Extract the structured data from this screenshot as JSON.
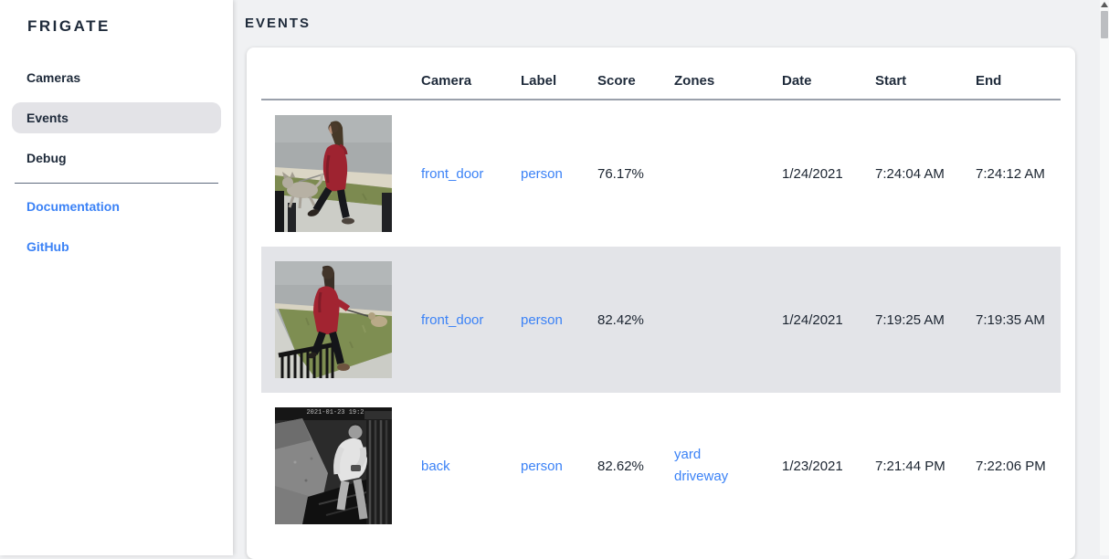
{
  "app": {
    "title": "FRIGATE"
  },
  "sidebar": {
    "items": [
      {
        "label": "Cameras",
        "active": false
      },
      {
        "label": "Events",
        "active": true
      },
      {
        "label": "Debug",
        "active": false
      }
    ],
    "links": [
      {
        "label": "Documentation"
      },
      {
        "label": "GitHub"
      }
    ]
  },
  "main": {
    "heading": "EVENTS",
    "table": {
      "columns": [
        "Camera",
        "Label",
        "Score",
        "Zones",
        "Date",
        "Start",
        "End"
      ],
      "rows": [
        {
          "camera": "front_door",
          "label": "person",
          "score": "76.17%",
          "zones": [],
          "date": "1/24/2021",
          "start": "7:24:04 AM",
          "end": "7:24:12 AM",
          "selected": false,
          "thumbnail": "person-red-coat-walking-dog-daylight"
        },
        {
          "camera": "front_door",
          "label": "person",
          "score": "82.42%",
          "zones": [],
          "date": "1/24/2021",
          "start": "7:19:25 AM",
          "end": "7:19:35 AM",
          "selected": true,
          "thumbnail": "person-red-hoodie-leash-daylight"
        },
        {
          "camera": "back",
          "label": "person",
          "score": "82.62%",
          "zones": [
            "yard",
            "driveway"
          ],
          "date": "1/23/2021",
          "start": "7:21:44 PM",
          "end": "7:22:06 PM",
          "selected": false,
          "thumbnail": "person-white-shirt-night-infrared",
          "thumbnail_overlay_timestamp": "2021-01-23 19:2"
        }
      ]
    }
  },
  "colors": {
    "link_blue": "#3b82f6",
    "dark_navy_text": "#1e2a3a",
    "selected_row_bg": "#e3e4e8",
    "active_nav_bg": "#e3e3e7",
    "page_bg": "#f0f1f3",
    "card_bg": "#ffffff",
    "header_divider": "#9aa0ab"
  }
}
